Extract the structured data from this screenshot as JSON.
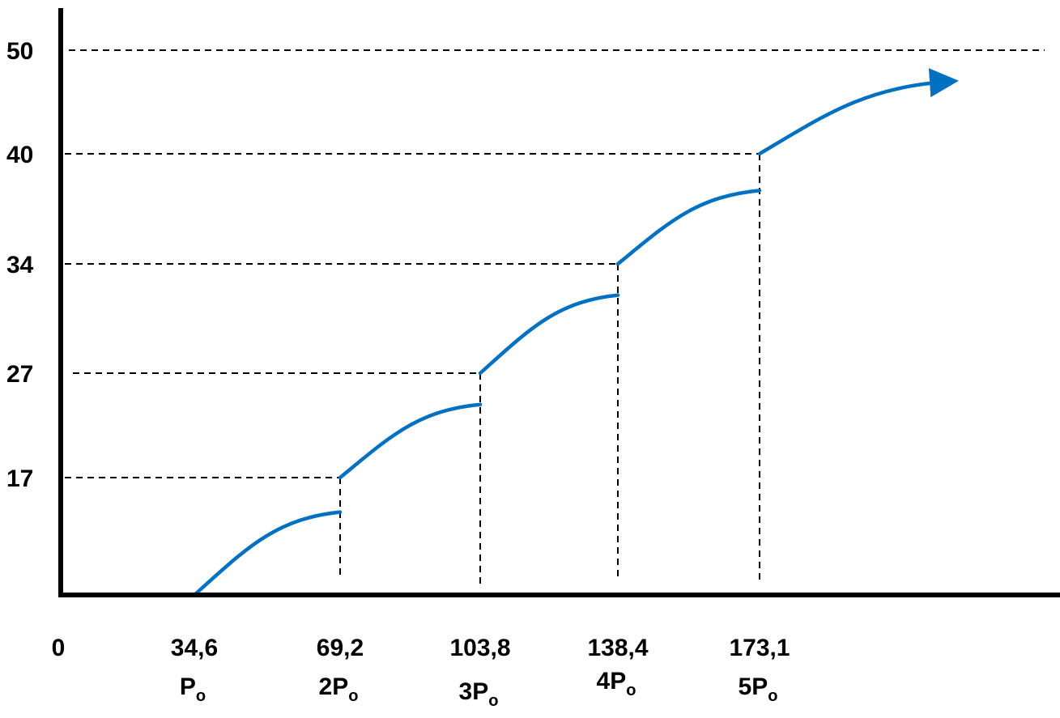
{
  "chart_data": {
    "type": "line",
    "series_color": "#0070C0",
    "x_ticks": [
      {
        "value": "0",
        "sub": "",
        "subscript": ""
      },
      {
        "value": "34,6",
        "sub": "P",
        "subscript": "o"
      },
      {
        "value": "69,2",
        "sub": "2P",
        "subscript": "o"
      },
      {
        "value": "103,8",
        "sub": "3P",
        "subscript": "o"
      },
      {
        "value": "138,4",
        "sub": "4P",
        "subscript": "o"
      },
      {
        "value": "173,1",
        "sub": "5P",
        "subscript": "o"
      }
    ],
    "y_ticks": [
      "17",
      "27",
      "34",
      "40",
      "50"
    ],
    "grid_levels": [
      17,
      27,
      34,
      40,
      50
    ],
    "segments": [
      {
        "x_start": 34.6,
        "x_end": 69.2,
        "y_start": 0,
        "y_end": 12
      },
      {
        "x_start": 69.2,
        "x_end": 103.8,
        "y_start": 17,
        "y_end": 24
      },
      {
        "x_start": 103.8,
        "x_end": 138.4,
        "y_start": 27,
        "y_end": 32
      },
      {
        "x_start": 138.4,
        "x_end": 173.1,
        "y_start": 34,
        "y_end": 38
      },
      {
        "x_start": 173.1,
        "x_end": 223,
        "y_start": 40,
        "y_end": 47
      }
    ],
    "arrow_on_last_segment": true,
    "xlabel": "",
    "ylabel": "",
    "title": ""
  }
}
